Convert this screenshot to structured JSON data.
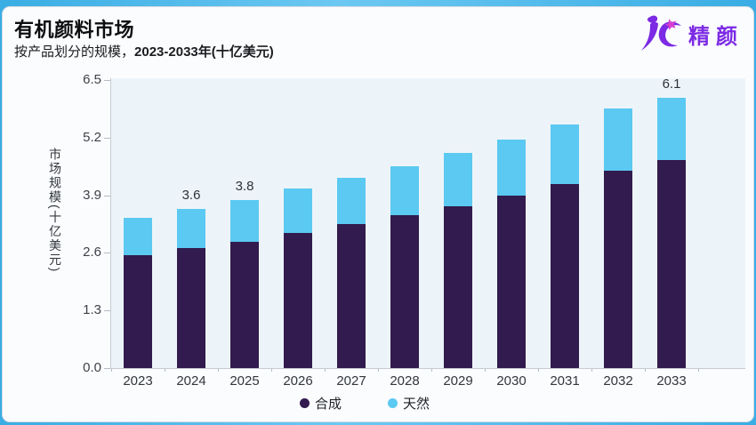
{
  "page": {
    "title": "有机颜料市场",
    "subtitle_regular": "按产品划分的规模，",
    "subtitle_bold": "2023-2033年(十亿美元)"
  },
  "logo": {
    "text": "精颜",
    "mark_icon": "jc-figure-mark",
    "color": "#7c2ae4",
    "accent_color": "#d93ed0"
  },
  "colors": {
    "synthetic_bar": "#321b4e",
    "natural_bar": "#5bc9f1",
    "plot_background": "#edf4f9",
    "card_background": "#fafcfe",
    "frame_blue": "#39ade4",
    "axis_line": "#c6cbd1"
  },
  "chart_data": {
    "type": "bar",
    "stacked": true,
    "title": "有机颜料市场",
    "subtitle": "按产品划分的规模，2023-2033年(十亿美元)",
    "xlabel": "",
    "ylabel": "市场规模(十亿美元)",
    "categories": [
      "2023",
      "2024",
      "2025",
      "2026",
      "2027",
      "2028",
      "2029",
      "2030",
      "2031",
      "2032",
      "2033"
    ],
    "series": [
      {
        "name": "合成",
        "color": "#321b4e",
        "values": [
          2.55,
          2.7,
          2.85,
          3.05,
          3.25,
          3.45,
          3.65,
          3.9,
          4.15,
          4.45,
          4.7
        ]
      },
      {
        "name": "天然",
        "color": "#5bc9f1",
        "values": [
          0.85,
          0.9,
          0.95,
          1.0,
          1.05,
          1.1,
          1.2,
          1.25,
          1.35,
          1.4,
          1.4
        ]
      }
    ],
    "totals": [
      3.4,
      3.6,
      3.8,
      4.05,
      4.3,
      4.55,
      4.85,
      5.15,
      5.5,
      5.85,
      6.1
    ],
    "point_labels": [
      {
        "index": 1,
        "text": "3.6"
      },
      {
        "index": 2,
        "text": "3.8"
      },
      {
        "index": 10,
        "text": "6.1"
      }
    ],
    "yticks": [
      "0.0",
      "1.3",
      "2.6",
      "3.9",
      "5.2",
      "6.5"
    ],
    "ylim": [
      0,
      6.5
    ],
    "grid": false,
    "legend_position": "bottom"
  }
}
